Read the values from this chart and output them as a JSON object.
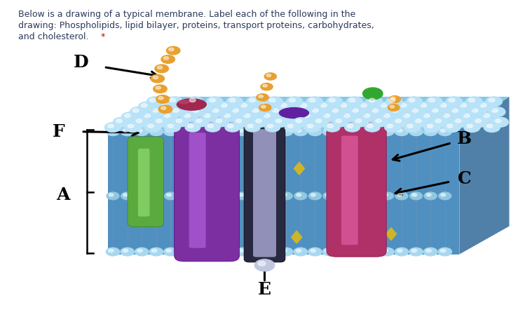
{
  "bg_color": "#dce8dc",
  "card_color": "#ffffff",
  "text_line1": "Below is a drawing of a typical membrane. Label each of the following in the",
  "text_line2": "drawing: Phospholipids, lipid bilayer, proteins, transport proteins, carbohydrates,",
  "text_line3": "and cholesterol.",
  "text_asterisk": " *",
  "text_color": "#2a3a5a",
  "asterisk_color": "#cc0000",
  "phospholipid_head_color": "#a8d8f0",
  "phospholipid_head_highlight": "#d0eefa",
  "membrane_body_color": "#6aaedc",
  "membrane_front_color": "#5090c0",
  "orange_bead_color": "#e8a030",
  "orange_bead_highlight": "#f0c060",
  "purple_protein_color": "#7b2fa0",
  "purple_protein_highlight": "#a050c8",
  "pink_protein_color": "#b03068",
  "pink_protein_highlight": "#d05090",
  "green_protein_color": "#5aaa40",
  "green_protein_highlight": "#80cc60",
  "cholesterol_color": "#d4b820",
  "red_blob_color": "#a02850",
  "red_blob_highlight": "#c04870",
  "purple_blob_color": "#6020a0",
  "green_dot_color": "#30a830",
  "channel_outer_color": "#282840",
  "channel_inner_color": "#9090b8",
  "channel_bead_color": "#c0c8e0",
  "tail_color": "#7090b8",
  "label_fontsize": 16,
  "text_fontsize": 9
}
